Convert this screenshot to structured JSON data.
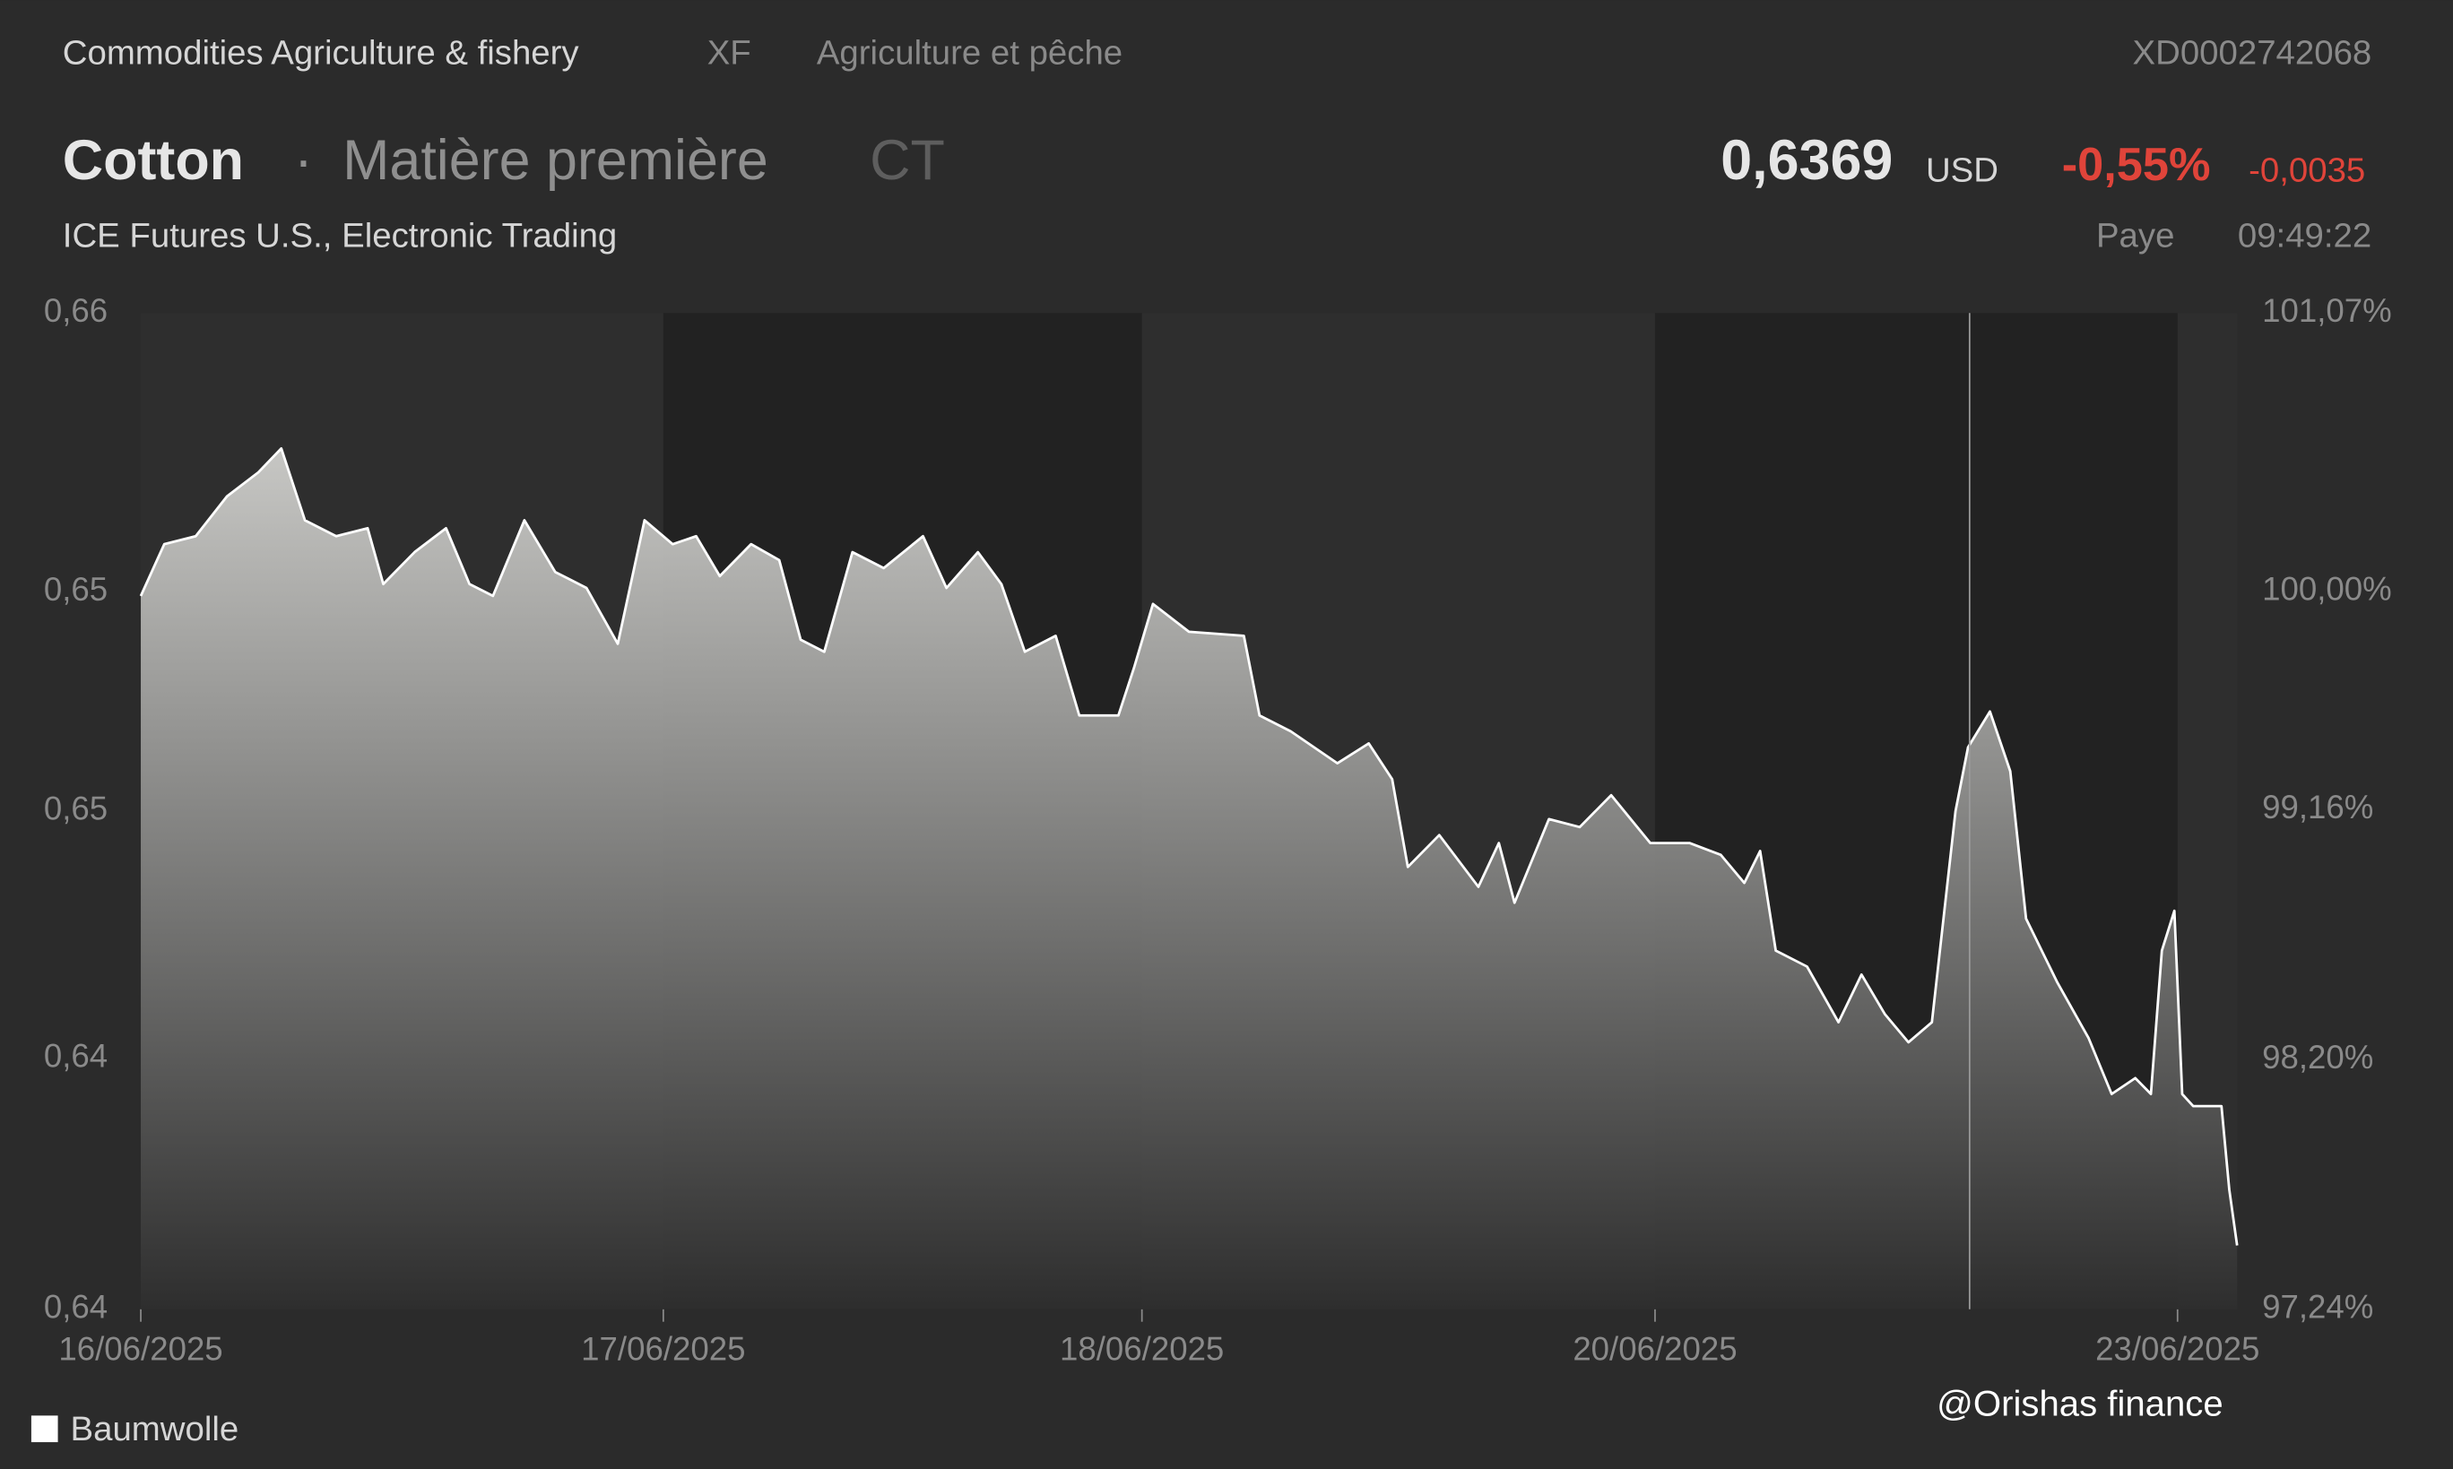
{
  "header": {
    "category": "Commodities Agriculture & fishery",
    "code": "XF",
    "category_fr": "Agriculture et pêche",
    "isin": "XD0002742068",
    "name": "Cotton",
    "separator": "·",
    "kind": "Matière première",
    "ticker": "CT",
    "exchange": "ICE Futures U.S., Electronic Trading",
    "price": "0,6369",
    "currency": "USD",
    "change_pct": "-0,55%",
    "change_abs": "-0,0035",
    "status": "Paye",
    "time": "09:49:22"
  },
  "watermark": "@Orishas finance",
  "chart_data": {
    "type": "area",
    "x": [
      0,
      0.045,
      0.105,
      0.165,
      0.225,
      0.269,
      0.314,
      0.374,
      0.434,
      0.464,
      0.524,
      0.584,
      0.629,
      0.674,
      0.734,
      0.793,
      0.853,
      0.913,
      0.964,
      1.018,
      1.063,
      1.108,
      1.168,
      1.222,
      1.263,
      1.308,
      1.362,
      1.422,
      1.497,
      1.542,
      1.602,
      1.647,
      1.692,
      1.751,
      1.796,
      1.871,
      1.901,
      1.937,
      2.006,
      2.111,
      2.141,
      2.201,
      2.29,
      2.35,
      2.395,
      2.425,
      2.485,
      2.56,
      2.599,
      2.629,
      2.695,
      2.754,
      2.814,
      2.889,
      2.964,
      3.024,
      3.069,
      3.099,
      3.129,
      3.189,
      3.249,
      3.293,
      3.338,
      3.383,
      3.428,
      3.473,
      3.497,
      3.539,
      3.578,
      3.608,
      3.668,
      3.728,
      3.772,
      3.817,
      3.847,
      3.868,
      3.892,
      3.907,
      3.928,
      3.982,
      3.997,
      4.012
    ],
    "series": [
      {
        "name": "Baumwolle",
        "color": "#ffffff",
        "values": [
          0.6532,
          0.6545,
          0.6547,
          0.6557,
          0.6563,
          0.6569,
          0.6551,
          0.6547,
          0.6549,
          0.6535,
          0.6543,
          0.6549,
          0.6535,
          0.6532,
          0.6551,
          0.6538,
          0.6534,
          0.652,
          0.6551,
          0.6545,
          0.6547,
          0.6537,
          0.6545,
          0.6541,
          0.6521,
          0.6518,
          0.6543,
          0.6539,
          0.6547,
          0.6534,
          0.6543,
          0.6535,
          0.6518,
          0.6522,
          0.6502,
          0.6502,
          0.6514,
          0.653,
          0.6523,
          0.6522,
          0.6502,
          0.6498,
          0.649,
          0.6495,
          0.6486,
          0.6464,
          0.6472,
          0.6459,
          0.647,
          0.6455,
          0.6476,
          0.6474,
          0.6482,
          0.647,
          0.647,
          0.6467,
          0.646,
          0.6468,
          0.6443,
          0.6439,
          0.6425,
          0.6437,
          0.6427,
          0.642,
          0.6425,
          0.6478,
          0.6494,
          0.6503,
          0.6488,
          0.6451,
          0.6435,
          0.6421,
          0.6407,
          0.6411,
          0.6407,
          0.6443,
          0.6453,
          0.6407,
          0.6404,
          0.6404,
          0.6383,
          0.6369
        ]
      }
    ],
    "xlim": [
      0,
      4.012
    ],
    "xticks": [
      {
        "value": 0,
        "label": "16/06/2025"
      },
      {
        "value": 1,
        "label": "17/06/2025"
      },
      {
        "value": 1.916,
        "label": "18/06/2025"
      },
      {
        "value": 2.898,
        "label": "20/06/2025"
      },
      {
        "value": 3.898,
        "label": "23/06/2025"
      }
    ],
    "ylim": [
      0.6353,
      0.6603
    ],
    "yticks": [
      {
        "value": 0.6603,
        "label": "0,66"
      },
      {
        "value": 0.6533,
        "label": "0,65"
      },
      {
        "value": 0.6478,
        "label": "0,65"
      },
      {
        "value": 0.6416,
        "label": "0,64"
      },
      {
        "value": 0.6353,
        "label": "0,64"
      }
    ],
    "y2lim": [
      97.24,
      101.07
    ],
    "y2ticks": [
      {
        "value": 101.07,
        "label": "101,07%"
      },
      {
        "value": 100,
        "label": "100,00%"
      },
      {
        "value": 99.16,
        "label": "99,16%"
      },
      {
        "value": 98.2,
        "label": "98,20%"
      },
      {
        "value": 97.24,
        "label": "97,24%"
      }
    ]
  }
}
